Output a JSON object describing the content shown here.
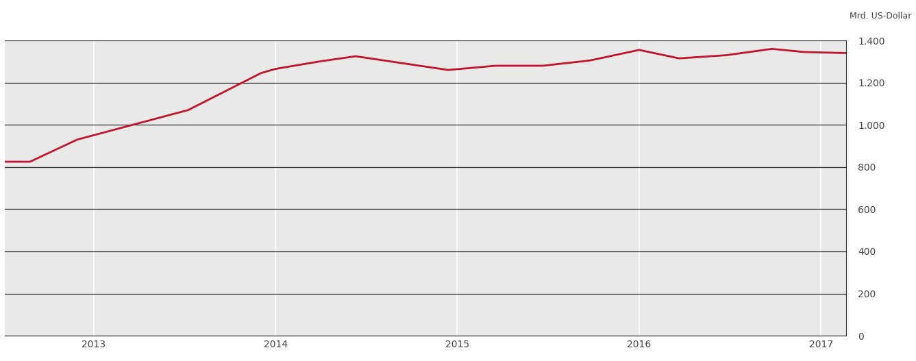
{
  "chart_data": {
    "type": "line",
    "y_label": "Mrd. US-Dollar",
    "x": [
      2012.51,
      2012.65,
      2012.91,
      2013.52,
      2013.92,
      2014.0,
      2014.24,
      2014.44,
      2014.95,
      2015.21,
      2015.47,
      2015.73,
      2016.0,
      2016.22,
      2016.48,
      2016.73,
      2016.91,
      2017.14
    ],
    "values": [
      825,
      825,
      930,
      1070,
      1245,
      1265,
      1300,
      1325,
      1260,
      1280,
      1280,
      1305,
      1355,
      1315,
      1330,
      1360,
      1345,
      1340
    ],
    "color": "#c0142c",
    "xlim": [
      2012.51,
      2017.14
    ],
    "xticks": [
      2013,
      2014,
      2015,
      2016,
      2017
    ],
    "ylim": [
      0,
      1400
    ],
    "yticks": [
      0,
      200,
      400,
      600,
      800,
      {
        "value": 1000,
        "label": "1.000"
      },
      {
        "value": 1200,
        "label": "1.200"
      },
      {
        "value": 1400,
        "label": "1.400"
      }
    ],
    "grid": true
  }
}
